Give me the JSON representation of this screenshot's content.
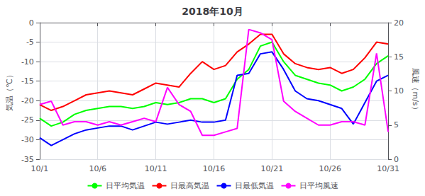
{
  "chart_data": {
    "type": "line",
    "title": "2018年10月",
    "x": [
      1,
      2,
      3,
      4,
      5,
      6,
      7,
      8,
      9,
      10,
      11,
      12,
      13,
      14,
      15,
      16,
      17,
      18,
      19,
      20,
      21,
      22,
      23,
      24,
      25,
      26,
      27,
      28,
      29,
      30,
      31
    ],
    "xlim": [
      1,
      31
    ],
    "xticks": [
      {
        "value": 1,
        "label": "10/1"
      },
      {
        "value": 6,
        "label": "10/6"
      },
      {
        "value": 11,
        "label": "10/11"
      },
      {
        "value": 16,
        "label": "10/16"
      },
      {
        "value": 21,
        "label": "10/21"
      },
      {
        "value": 26,
        "label": "10/26"
      },
      {
        "value": 31,
        "label": "10/31"
      }
    ],
    "ylabel": "気温（℃）",
    "y2label": "風速（m/s）",
    "ylim": [
      -35,
      0
    ],
    "yticks": [
      0,
      -5,
      -10,
      -15,
      -20,
      -25,
      -30,
      -35
    ],
    "y2lim": [
      0,
      20
    ],
    "y2ticks": [
      0,
      5,
      10,
      15,
      20
    ],
    "grid": true,
    "legend": "bottom",
    "series": [
      {
        "name": "日平均気温",
        "color": "#00ff00",
        "values": [
          -24.5,
          -26.5,
          -25.5,
          -23.5,
          -22.5,
          -22.0,
          -21.5,
          -21.5,
          -22.0,
          -21.5,
          -20.5,
          -21.0,
          -20.5,
          -19.5,
          -19.5,
          -20.5,
          -19.5,
          -14.5,
          -12.0,
          -6.0,
          -5.0,
          -10.0,
          -13.5,
          -14.5,
          -15.5,
          -16.0,
          -17.5,
          -16.5,
          -14.5,
          -10.5,
          -8.5
        ]
      },
      {
        "name": "日最高気温",
        "color": "#ff0000",
        "values": [
          -21.0,
          -22.5,
          -21.5,
          -20.0,
          -18.5,
          -18.0,
          -17.5,
          -18.0,
          -18.5,
          -17.0,
          -15.5,
          -16.0,
          -16.5,
          -13.0,
          -10.0,
          -12.0,
          -11.0,
          -7.5,
          -5.5,
          -3.0,
          -3.0,
          -8.0,
          -10.5,
          -11.5,
          -12.0,
          -11.5,
          -13.0,
          -12.0,
          -9.0,
          -5.0,
          -5.5
        ]
      },
      {
        "name": "日最低気温",
        "color": "#0000ff",
        "values": [
          -29.5,
          -31.5,
          -30.0,
          -28.5,
          -27.5,
          -27.0,
          -26.5,
          -26.5,
          -27.5,
          -26.5,
          -25.5,
          -26.0,
          -25.5,
          -25.0,
          -25.5,
          -25.5,
          -25.0,
          -13.5,
          -13.0,
          -8.0,
          -7.5,
          -12.0,
          -17.5,
          -19.5,
          -20.0,
          -21.0,
          -22.0,
          -26.0,
          -20.5,
          -15.0,
          -13.5
        ]
      },
      {
        "name": "日平均風速",
        "color": "#ff00ff",
        "axis": "y2",
        "values": [
          8.0,
          8.5,
          5.0,
          5.5,
          5.5,
          5.0,
          5.5,
          5.0,
          5.5,
          6.0,
          5.5,
          10.5,
          8.0,
          7.0,
          3.5,
          3.5,
          4.0,
          4.5,
          19.0,
          18.5,
          17.5,
          8.5,
          7.0,
          6.0,
          5.0,
          5.0,
          5.5,
          5.5,
          5.0,
          15.5,
          4.0
        ]
      }
    ]
  }
}
